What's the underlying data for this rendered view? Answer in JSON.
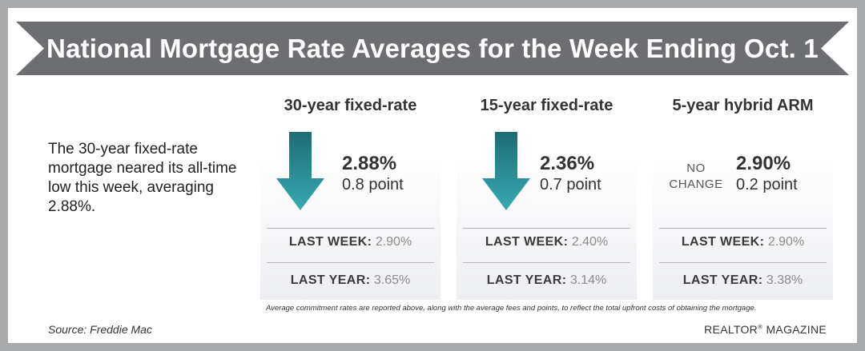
{
  "title": "National Mortgage Rate Averages for the Week Ending Oct. 1",
  "summary": "The 30-year fixed-rate mortgage neared its all-time low this week, averaging 2.88%.",
  "columns": [
    {
      "title": "30-year fixed-rate",
      "change": "down",
      "change_icon": "down-arrow-icon",
      "rate": "2.88%",
      "points": "0.8 point",
      "last_week_label": "LAST WEEK:",
      "last_week_value": "2.90%",
      "last_year_label": "LAST YEAR:",
      "last_year_value": "3.65%"
    },
    {
      "title": "15-year fixed-rate",
      "change": "down",
      "change_icon": "down-arrow-icon",
      "rate": "2.36%",
      "points": "0.7 point",
      "last_week_label": "LAST WEEK:",
      "last_week_value": "2.40%",
      "last_year_label": "LAST YEAR:",
      "last_year_value": "3.14%"
    },
    {
      "title": "5-year hybrid ARM",
      "change": "none",
      "change_text_1": "NO",
      "change_text_2": "CHANGE",
      "rate": "2.90%",
      "points": "0.2 point",
      "last_week_label": "LAST WEEK:",
      "last_week_value": "2.90%",
      "last_year_label": "LAST YEAR:",
      "last_year_value": "3.38%"
    }
  ],
  "footnote": "Average commitment rates are reported above, along with the average fees and points, to reflect the total upfront costs of obtaining the mortgage.",
  "source": "Source: Freddie Mac",
  "brand": {
    "name": "REALTOR",
    "mark": "®",
    "suffix": " MAGAZINE"
  },
  "colors": {
    "banner": "#6d6e71",
    "arrow_top": "#1d6c74",
    "arrow_bottom": "#36aab3",
    "frame": "#a9aaac"
  }
}
